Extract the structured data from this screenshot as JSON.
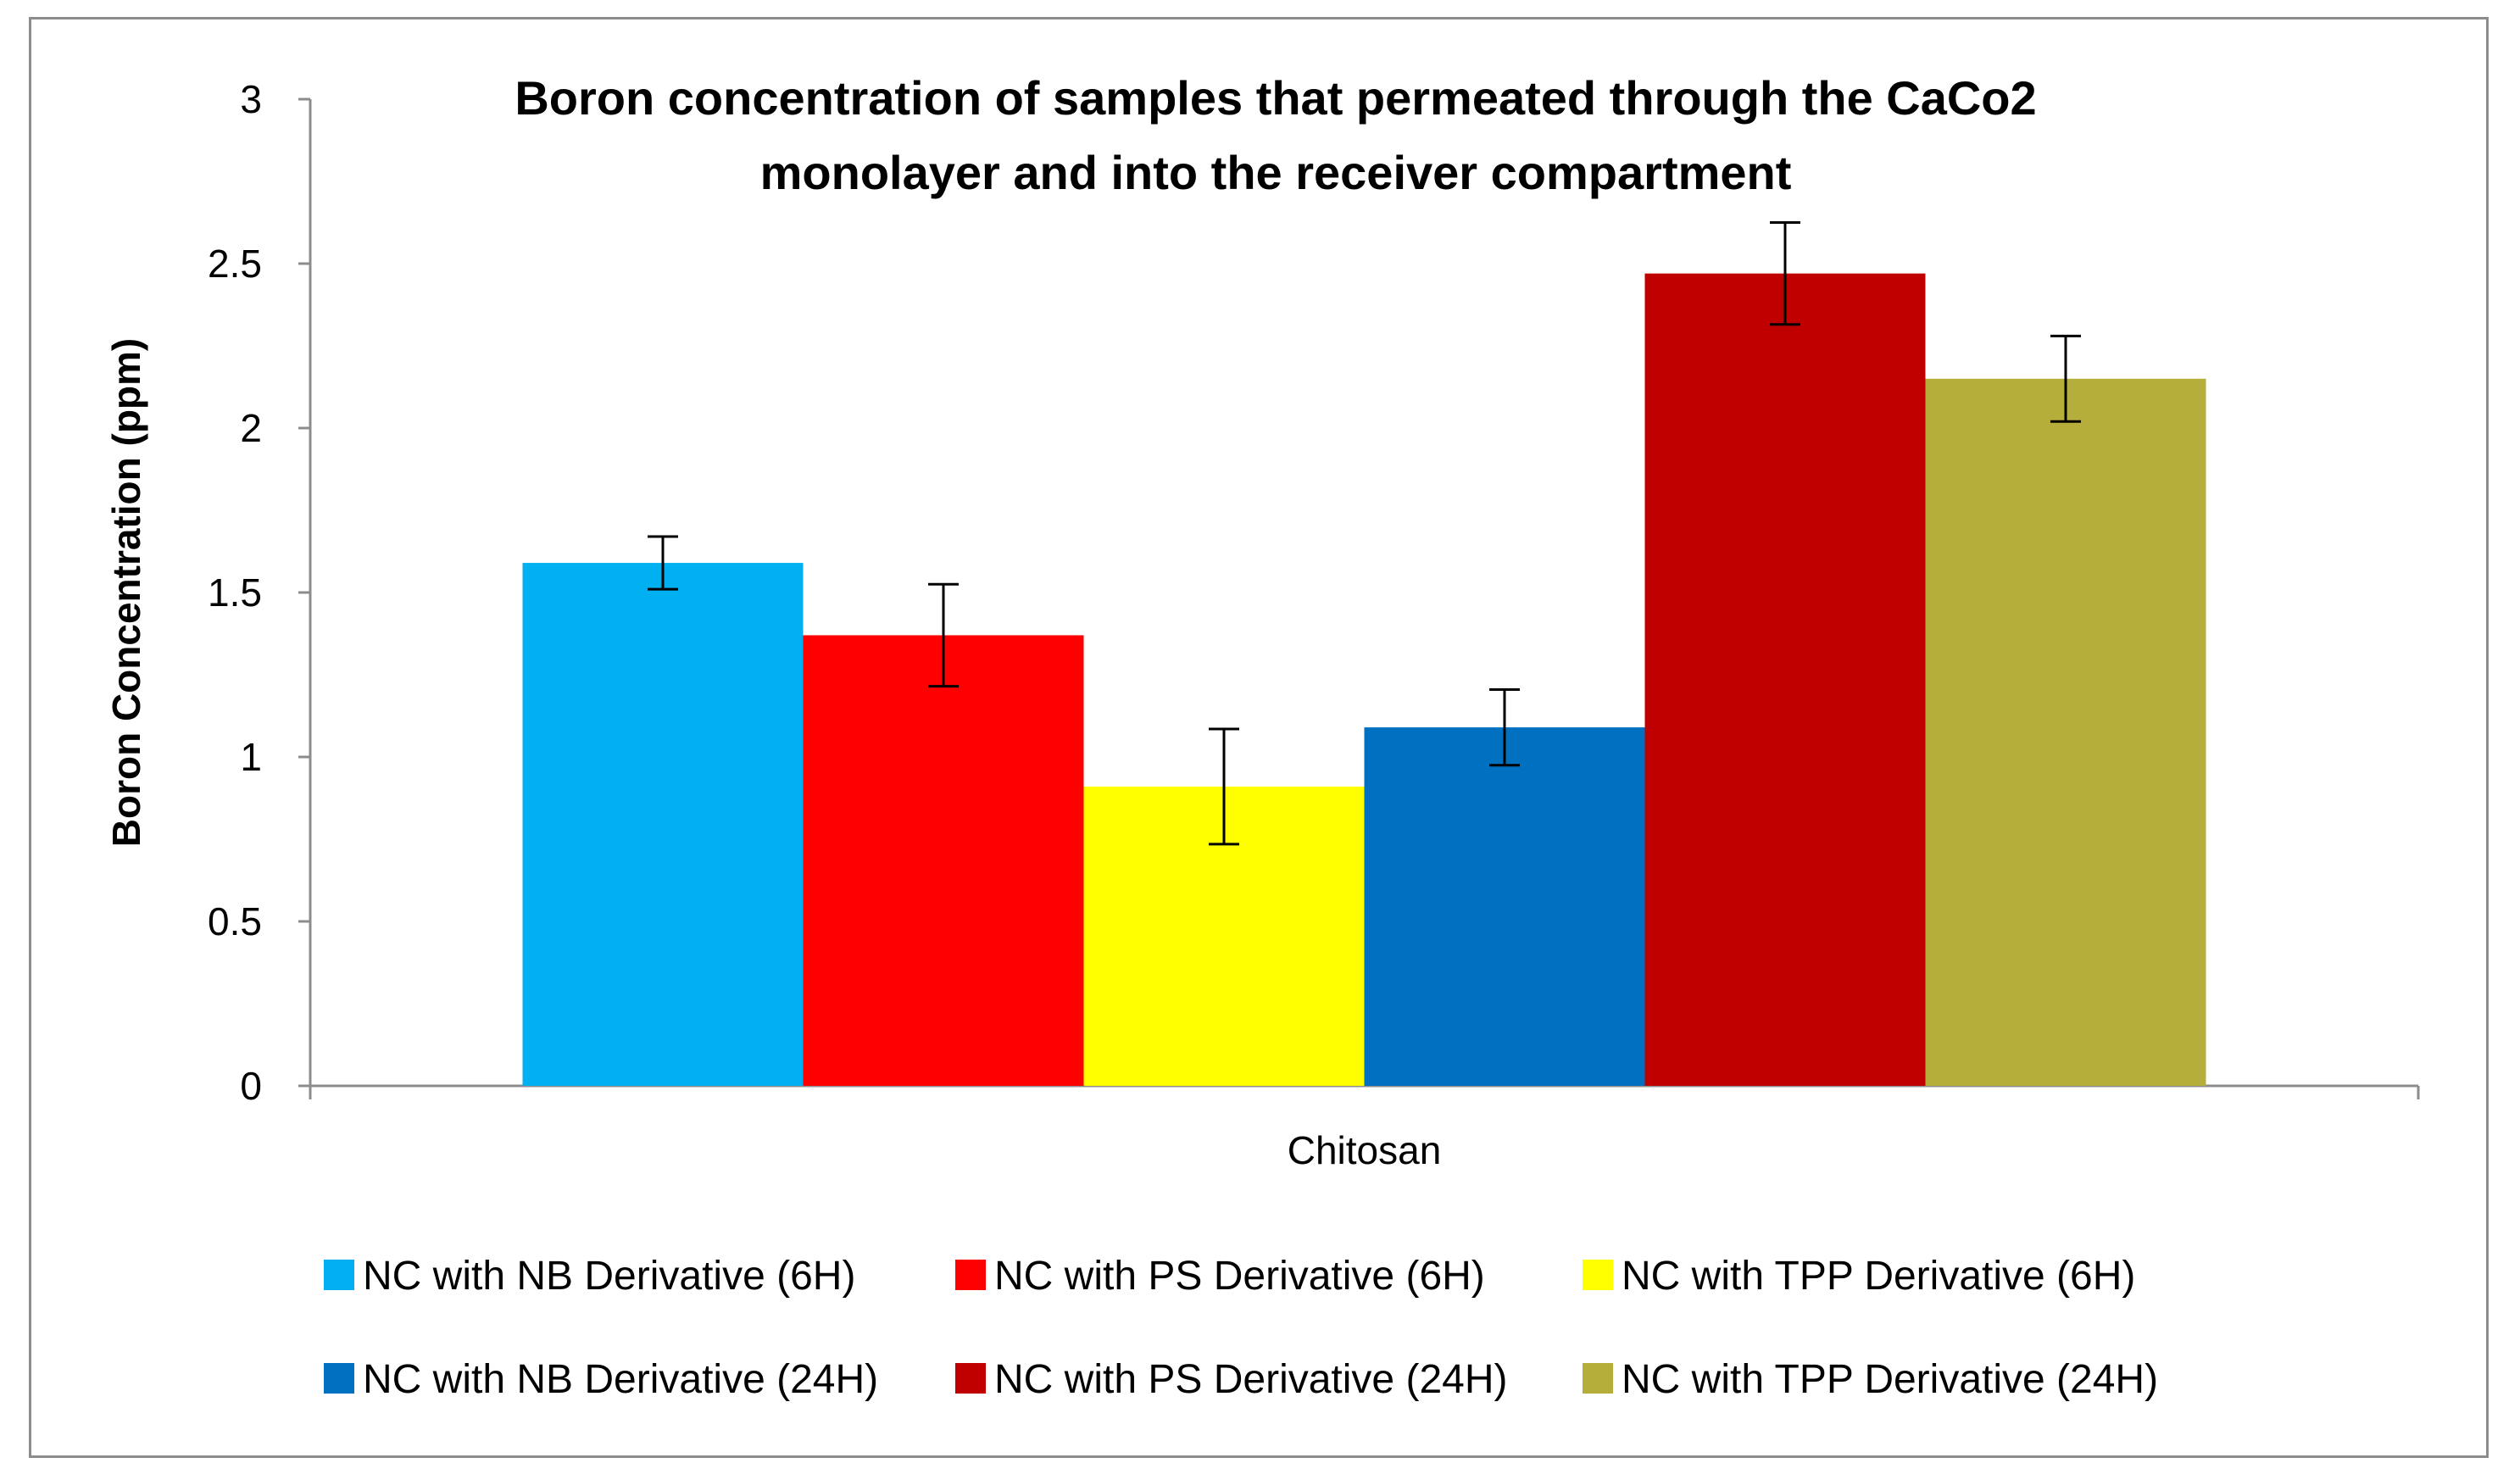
{
  "chart_data": {
    "type": "bar",
    "title_lines": [
      "Boron concentration of samples that permeated through the CaCo2",
      "monolayer and into the receiver compartment"
    ],
    "xlabel": "",
    "ylabel": "Boron Concentration (ppm)",
    "ylim": [
      0,
      3
    ],
    "yticks": [
      "0",
      "0.5",
      "1",
      "1.5",
      "2",
      "2.5",
      "3"
    ],
    "categories": [
      "Chitosan"
    ],
    "grid": false,
    "legend_position": "bottom",
    "series": [
      {
        "name": "NC with NB Derivative (6H)",
        "color": "#00b0f0",
        "values": [
          1.59
        ],
        "error": [
          0.08
        ]
      },
      {
        "name": "NC with PS Derivative (6H)",
        "color": "#ff0000",
        "values": [
          1.37
        ],
        "error": [
          0.155
        ]
      },
      {
        "name": "NC with TPP Derivative (6H)",
        "color": "#ffff00",
        "values": [
          0.91
        ],
        "error": [
          0.175
        ]
      },
      {
        "name": "NC with NB Derivative (24H)",
        "color": "#0070c0",
        "values": [
          1.09
        ],
        "error": [
          0.115
        ]
      },
      {
        "name": "NC with PS Derivative (24H)",
        "color": "#c00000",
        "values": [
          2.47
        ],
        "error": [
          0.155
        ]
      },
      {
        "name": "NC with TPP Derivative (24H)",
        "color": "#b5ae3b",
        "values": [
          2.15
        ],
        "error": [
          0.13
        ]
      }
    ]
  }
}
